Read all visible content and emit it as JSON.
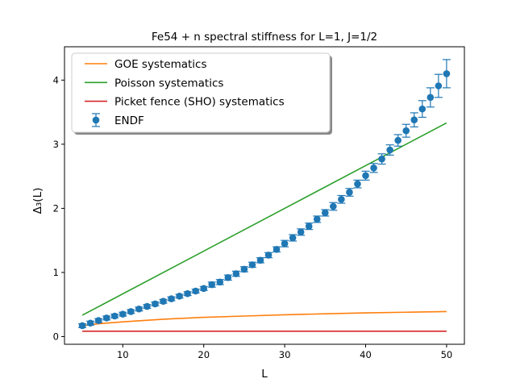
{
  "chart_data": {
    "type": "scatter",
    "title": "Fe54 + n  spectral stiffness for L=1, J=1/2",
    "xlabel": "L",
    "ylabel": "Δ₃(L)",
    "xlim": [
      2.8,
      52.2
    ],
    "ylim": [
      -0.12,
      4.52
    ],
    "xticks": [
      10,
      20,
      30,
      40,
      50
    ],
    "yticks": [
      0,
      1,
      2,
      3,
      4
    ],
    "grid": false,
    "legend_position": "upper-left",
    "series": [
      {
        "name": "GOE systematics",
        "kind": "line",
        "color": "#ff7f0e",
        "x": [
          5,
          7,
          10,
          15,
          20,
          25,
          30,
          35,
          40,
          45,
          50
        ],
        "y": [
          0.17,
          0.2,
          0.23,
          0.27,
          0.3,
          0.32,
          0.34,
          0.355,
          0.37,
          0.38,
          0.39
        ]
      },
      {
        "name": "Poisson systematics",
        "kind": "line",
        "color": "#2ca02c",
        "x": [
          5,
          50
        ],
        "y": [
          0.333,
          3.333
        ]
      },
      {
        "name": "Picket fence (SHO) systematics",
        "kind": "line",
        "color": "#d62728",
        "x": [
          5,
          50
        ],
        "y": [
          0.083,
          0.083
        ]
      },
      {
        "name": "ENDF",
        "kind": "errorbar",
        "color": "#1f77b4",
        "x": [
          5,
          6,
          7,
          8,
          9,
          10,
          11,
          12,
          13,
          14,
          15,
          16,
          17,
          18,
          19,
          20,
          21,
          22,
          23,
          24,
          25,
          26,
          27,
          28,
          29,
          30,
          31,
          32,
          33,
          34,
          35,
          36,
          37,
          38,
          39,
          40,
          41,
          42,
          43,
          44,
          45,
          46,
          47,
          48,
          49,
          50
        ],
        "y": [
          0.17,
          0.21,
          0.25,
          0.29,
          0.32,
          0.35,
          0.39,
          0.43,
          0.47,
          0.51,
          0.55,
          0.59,
          0.63,
          0.67,
          0.71,
          0.75,
          0.81,
          0.85,
          0.92,
          0.98,
          1.05,
          1.12,
          1.19,
          1.27,
          1.36,
          1.45,
          1.54,
          1.63,
          1.72,
          1.83,
          1.93,
          2.03,
          2.14,
          2.25,
          2.38,
          2.51,
          2.63,
          2.77,
          2.91,
          3.06,
          3.21,
          3.38,
          3.55,
          3.73,
          3.91,
          4.1
        ],
        "yerr": [
          0.03,
          0.03,
          0.03,
          0.03,
          0.03,
          0.03,
          0.03,
          0.03,
          0.03,
          0.03,
          0.03,
          0.03,
          0.03,
          0.03,
          0.03,
          0.03,
          0.04,
          0.04,
          0.04,
          0.04,
          0.04,
          0.04,
          0.04,
          0.04,
          0.04,
          0.05,
          0.05,
          0.05,
          0.05,
          0.05,
          0.05,
          0.06,
          0.06,
          0.06,
          0.06,
          0.07,
          0.07,
          0.08,
          0.08,
          0.09,
          0.1,
          0.11,
          0.13,
          0.15,
          0.18,
          0.22
        ]
      }
    ]
  }
}
